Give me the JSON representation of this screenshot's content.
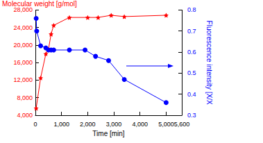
{
  "chart_data": {
    "type": "line",
    "x_label": "Time [min]",
    "y_label": "Molecular weight [g/mol]",
    "y2_label": "Fluorescence intensity [X/X",
    "xlim": [
      0,
      5600
    ],
    "xticks": [
      0,
      1000,
      2000,
      3000,
      4000,
      5000
    ],
    "ylim": [
      4000,
      28000
    ],
    "yticks": [
      4000,
      8000,
      12000,
      16000,
      20000,
      24000,
      28000
    ],
    "y2lim": [
      0.3,
      0.8
    ],
    "y2ticks": [
      0.3,
      0.4,
      0.5,
      0.6,
      0.7,
      0.8
    ],
    "grid": false,
    "series": [
      {
        "name": "Molecular weight",
        "color": "#ff0000",
        "marker": "star",
        "axis": "y",
        "x": [
          30,
          200,
          400,
          500,
          600,
          700,
          1300,
          2000,
          2400,
          2900,
          3400,
          5000
        ],
        "values": [
          5600,
          12500,
          18000,
          19000,
          22500,
          24500,
          26300,
          26300,
          26300,
          26800,
          26500,
          26800
        ]
      },
      {
        "name": "Fluorescence intensity",
        "color": "#0000ff",
        "marker": "circle",
        "axis": "y2",
        "x": [
          30,
          50,
          200,
          400,
          500,
          600,
          700,
          1300,
          1900,
          2300,
          2800,
          3400,
          5000
        ],
        "values": [
          0.76,
          0.7,
          0.63,
          0.62,
          0.61,
          0.61,
          0.61,
          0.61,
          0.61,
          0.58,
          0.56,
          0.47,
          0.36
        ]
      }
    ]
  }
}
